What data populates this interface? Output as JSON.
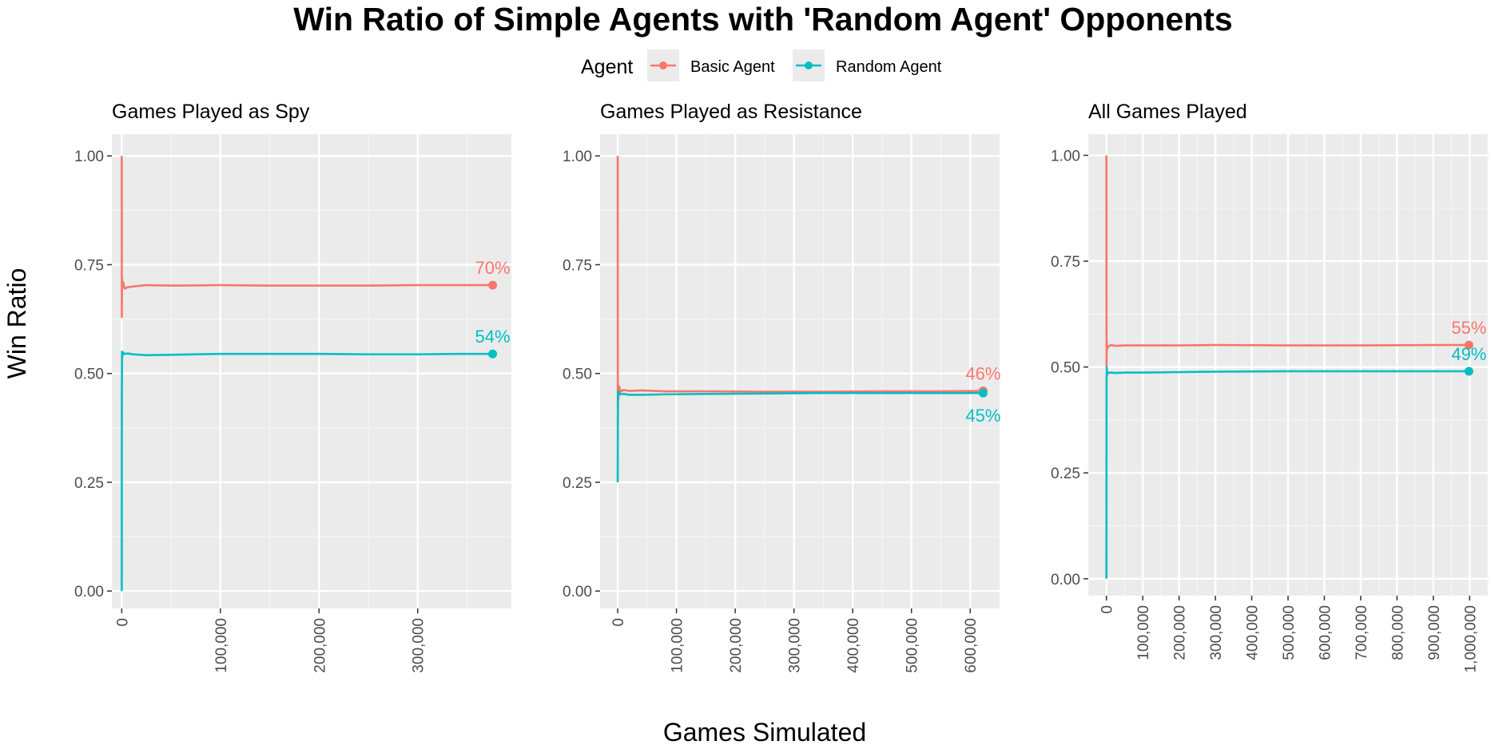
{
  "title": "Win Ratio of Simple Agents with 'Random Agent' Opponents",
  "ylabel": "Win Ratio",
  "xlabel": "Games Simulated",
  "legend": {
    "title": "Agent",
    "entries": [
      {
        "label": "Basic Agent",
        "color": "#F8766D"
      },
      {
        "label": "Random Agent",
        "color": "#00BFC4"
      }
    ]
  },
  "chart_data": [
    {
      "type": "line",
      "title": "Games Played as Spy",
      "xlim": [
        -10000,
        395000
      ],
      "ylim": [
        -0.04,
        1.05
      ],
      "x_ticks": [
        0,
        100000,
        200000,
        300000
      ],
      "x_tick_labels": [
        "0",
        "100,000",
        "200,000",
        "300,000"
      ],
      "y_ticks": [
        0,
        0.25,
        0.5,
        0.75,
        1.0
      ],
      "y_tick_labels": [
        "0.00",
        "0.25",
        "0.50",
        "0.75",
        "1.00"
      ],
      "series": [
        {
          "name": "Basic Agent",
          "color": "#F8766D",
          "end_label": "70%",
          "x": [
            0,
            100,
            300,
            700,
            1500,
            3000,
            6000,
            12000,
            25000,
            50000,
            100000,
            150000,
            200000,
            250000,
            300000,
            340000,
            376000
          ],
          "y": [
            1.0,
            0.63,
            0.72,
            0.7,
            0.71,
            0.695,
            0.698,
            0.7,
            0.703,
            0.702,
            0.703,
            0.702,
            0.702,
            0.702,
            0.703,
            0.703,
            0.703
          ]
        },
        {
          "name": "Random Agent",
          "color": "#00BFC4",
          "end_label": "54%",
          "x": [
            0,
            100,
            300,
            700,
            1500,
            3000,
            6000,
            12000,
            25000,
            50000,
            100000,
            150000,
            200000,
            250000,
            300000,
            340000,
            376000
          ],
          "y": [
            0.0,
            0.44,
            0.55,
            0.54,
            0.548,
            0.545,
            0.546,
            0.544,
            0.542,
            0.543,
            0.545,
            0.545,
            0.545,
            0.544,
            0.544,
            0.545,
            0.545
          ]
        }
      ]
    },
    {
      "type": "line",
      "title": "Games Played as Resistance",
      "xlim": [
        -30000,
        650000
      ],
      "ylim": [
        -0.04,
        1.05
      ],
      "x_ticks": [
        0,
        100000,
        200000,
        300000,
        400000,
        500000,
        600000
      ],
      "x_tick_labels": [
        "0",
        "100,000",
        "200,000",
        "300,000",
        "400,000",
        "500,000",
        "600,000"
      ],
      "y_ticks": [
        0,
        0.25,
        0.5,
        0.75,
        1.0
      ],
      "y_tick_labels": [
        "0.00",
        "0.25",
        "0.50",
        "0.75",
        "1.00"
      ],
      "series": [
        {
          "name": "Basic Agent",
          "color": "#F8766D",
          "end_label": "46%",
          "x": [
            0,
            200,
            500,
            1000,
            2500,
            5000,
            10000,
            20000,
            40000,
            80000,
            150000,
            250000,
            350000,
            450000,
            550000,
            622000
          ],
          "y": [
            1.0,
            0.38,
            0.48,
            0.44,
            0.47,
            0.458,
            0.462,
            0.46,
            0.461,
            0.459,
            0.459,
            0.458,
            0.458,
            0.459,
            0.459,
            0.46
          ]
        },
        {
          "name": "Random Agent",
          "color": "#00BFC4",
          "end_label": "45%",
          "x": [
            0,
            200,
            500,
            1000,
            2500,
            5000,
            10000,
            20000,
            40000,
            80000,
            150000,
            250000,
            350000,
            450000,
            550000,
            622000
          ],
          "y": [
            0.25,
            0.38,
            0.46,
            0.45,
            0.455,
            0.452,
            0.453,
            0.451,
            0.451,
            0.452,
            0.453,
            0.454,
            0.455,
            0.455,
            0.455,
            0.455
          ]
        }
      ]
    },
    {
      "type": "line",
      "title": "All Games Played",
      "xlim": [
        -50000,
        1050000
      ],
      "ylim": [
        -0.04,
        1.05
      ],
      "x_ticks": [
        0,
        100000,
        200000,
        300000,
        400000,
        500000,
        600000,
        700000,
        800000,
        900000,
        1000000
      ],
      "x_tick_labels": [
        "0",
        "100,000",
        "200,000",
        "300,000",
        "400,000",
        "500,000",
        "600,000",
        "700,000",
        "800,000",
        "900,000",
        "1,000,000"
      ],
      "y_ticks": [
        0,
        0.25,
        0.5,
        0.75,
        1.0
      ],
      "y_tick_labels": [
        "0.00",
        "0.25",
        "0.50",
        "0.75",
        "1.00"
      ],
      "series": [
        {
          "name": "Basic Agent",
          "color": "#F8766D",
          "end_label": "55%",
          "x": [
            0,
            300,
            800,
            1500,
            3000,
            6000,
            12000,
            25000,
            50000,
            100000,
            200000,
            300000,
            500000,
            700000,
            900000,
            998000
          ],
          "y": [
            1.0,
            0.5,
            0.56,
            0.54,
            0.55,
            0.548,
            0.552,
            0.55,
            0.551,
            0.551,
            0.551,
            0.552,
            0.551,
            0.551,
            0.552,
            0.552
          ]
        },
        {
          "name": "Random Agent",
          "color": "#00BFC4",
          "end_label": "49%",
          "x": [
            0,
            300,
            800,
            1500,
            3000,
            6000,
            12000,
            25000,
            50000,
            100000,
            200000,
            300000,
            500000,
            700000,
            900000,
            998000
          ],
          "y": [
            0.0,
            0.47,
            0.5,
            0.48,
            0.488,
            0.486,
            0.487,
            0.486,
            0.487,
            0.487,
            0.488,
            0.489,
            0.49,
            0.49,
            0.49,
            0.49
          ]
        }
      ]
    }
  ]
}
